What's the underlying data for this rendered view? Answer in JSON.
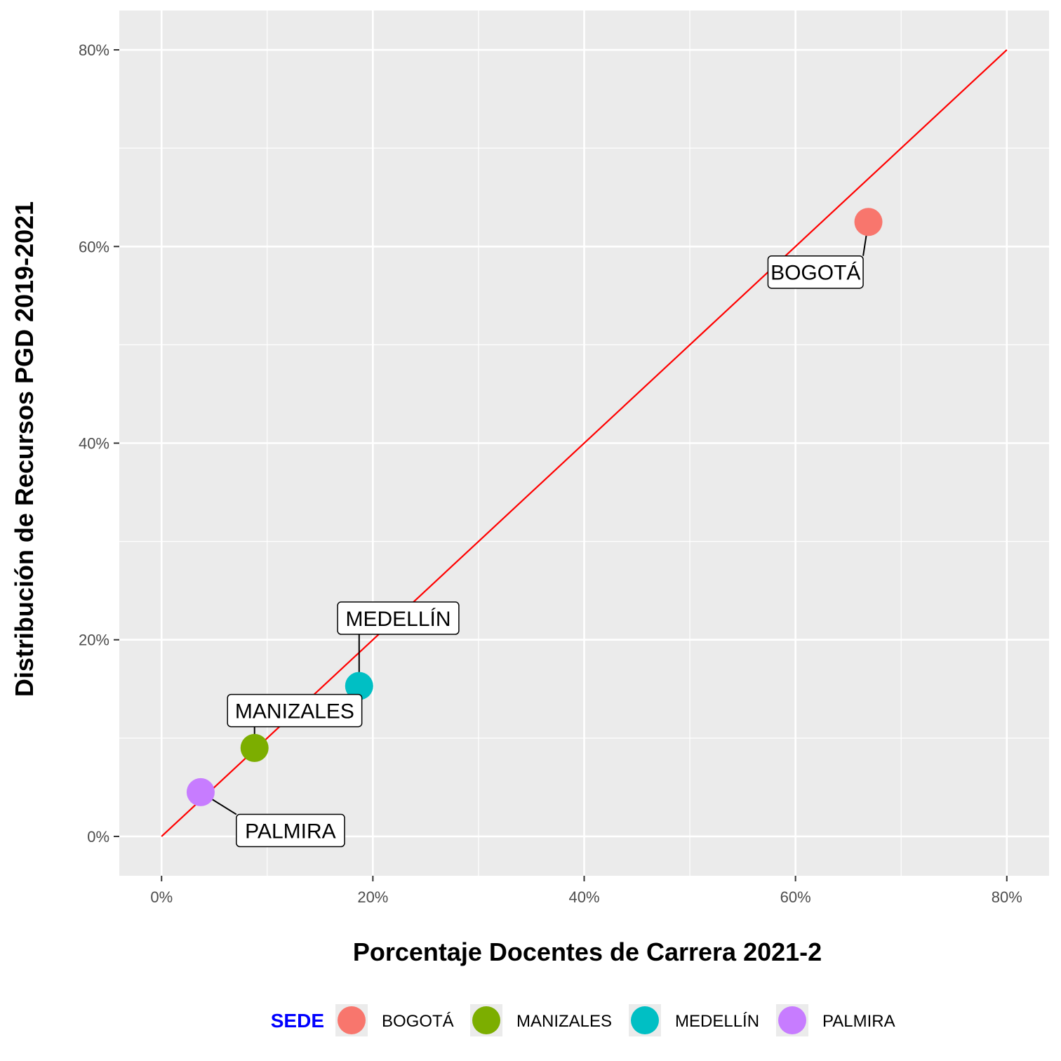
{
  "chart_data": {
    "type": "scatter",
    "xlabel": "Porcentaje Docentes de Carrera 2021-2",
    "ylabel": "Distribución de Recursos PGD 2019-2021",
    "xlim": [
      -0.04,
      0.84
    ],
    "ylim": [
      -0.04,
      0.84
    ],
    "x_ticks": [
      0,
      0.2,
      0.4,
      0.6,
      0.8
    ],
    "x_tick_labels": [
      "0%",
      "20%",
      "40%",
      "60%",
      "80%"
    ],
    "y_ticks": [
      0,
      0.2,
      0.4,
      0.6,
      0.8
    ],
    "y_tick_labels": [
      "0%",
      "20%",
      "40%",
      "60%",
      "80%"
    ],
    "grid": true,
    "reference_line": {
      "from": [
        0,
        0
      ],
      "to": [
        0.8,
        0.8
      ],
      "color": "#ff0000"
    },
    "points": [
      {
        "name": "BOGOTÁ",
        "x": 0.669,
        "y": 0.625,
        "color": "#F8766D",
        "label_x": 0.619,
        "label_y": 0.574
      },
      {
        "name": "MANIZALES",
        "x": 0.088,
        "y": 0.09,
        "color": "#7CAE00",
        "label_x": 0.126,
        "label_y": 0.128
      },
      {
        "name": "MEDELLÍN",
        "x": 0.187,
        "y": 0.153,
        "color": "#00BFC4",
        "label_x": 0.224,
        "label_y": 0.222
      },
      {
        "name": "PALMIRA",
        "x": 0.037,
        "y": 0.045,
        "color": "#C77CFF",
        "label_x": 0.122,
        "label_y": 0.006
      }
    ],
    "legend": {
      "title": "SEDE",
      "title_color": "#0000ff",
      "position": "bottom",
      "entries": [
        "BOGOTÁ",
        "MANIZALES",
        "MEDELLÍN",
        "PALMIRA"
      ]
    }
  }
}
